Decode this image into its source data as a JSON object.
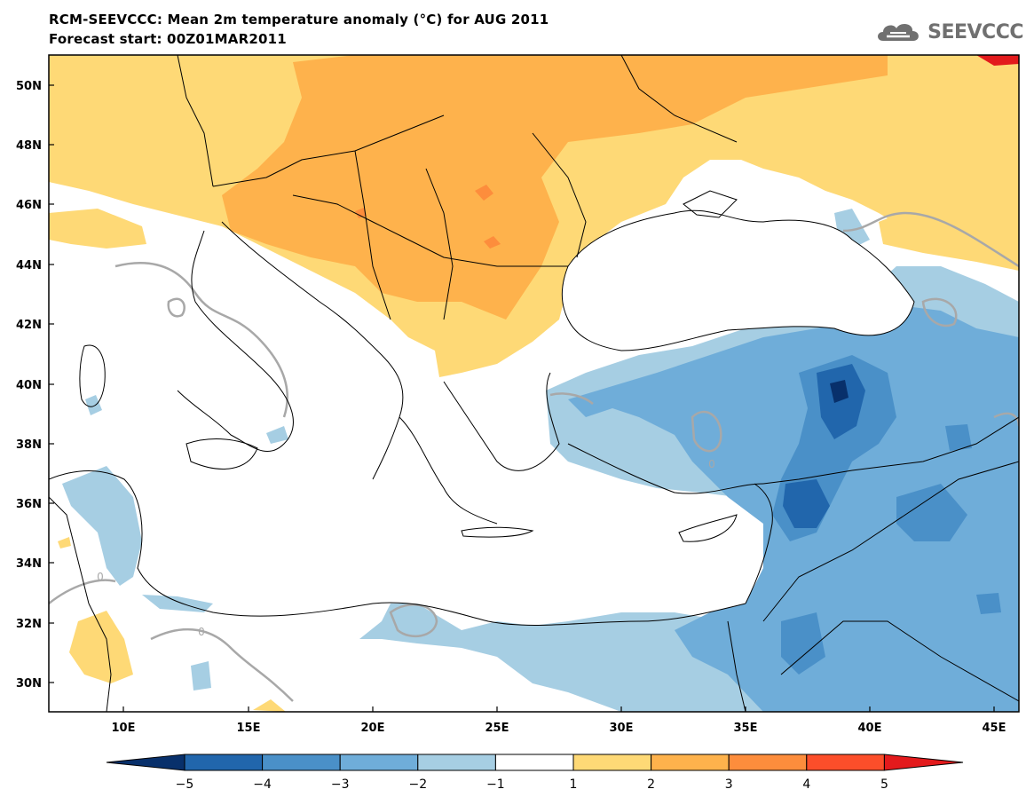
{
  "header": {
    "title": "RCM-SEEVCCC: Mean 2m temperature anomaly (°C) for AUG 2011",
    "subtitle": "Forecast start: 00Z01MAR2011",
    "logo_text": "SEEVCCC",
    "logo_icon": "cloud-icon"
  },
  "map": {
    "projection": "lat-lon",
    "lon_range": [
      7,
      46
    ],
    "lat_range": [
      29,
      51
    ],
    "lat_labels": [
      "50N",
      "48N",
      "46N",
      "44N",
      "42N",
      "40N",
      "38N",
      "36N",
      "34N",
      "32N",
      "30N"
    ],
    "lon_labels": [
      "10E",
      "15E",
      "20E",
      "25E",
      "30E",
      "35E",
      "40E",
      "45E"
    ],
    "contour_label": "0",
    "land_border_color": "#000000",
    "zero_contour_color": "#a8a8a8"
  },
  "legend": {
    "labels": [
      "−5",
      "−4",
      "−3",
      "−2",
      "−1",
      "1",
      "2",
      "3",
      "4",
      "5"
    ],
    "colors": [
      "#08306b",
      "#2166ac",
      "#4a90c8",
      "#6fadd9",
      "#a6cee3",
      "#ffffff",
      "#fed976",
      "#feb24c",
      "#fd8d3c",
      "#fc4e2a",
      "#e31a1c"
    ]
  }
}
